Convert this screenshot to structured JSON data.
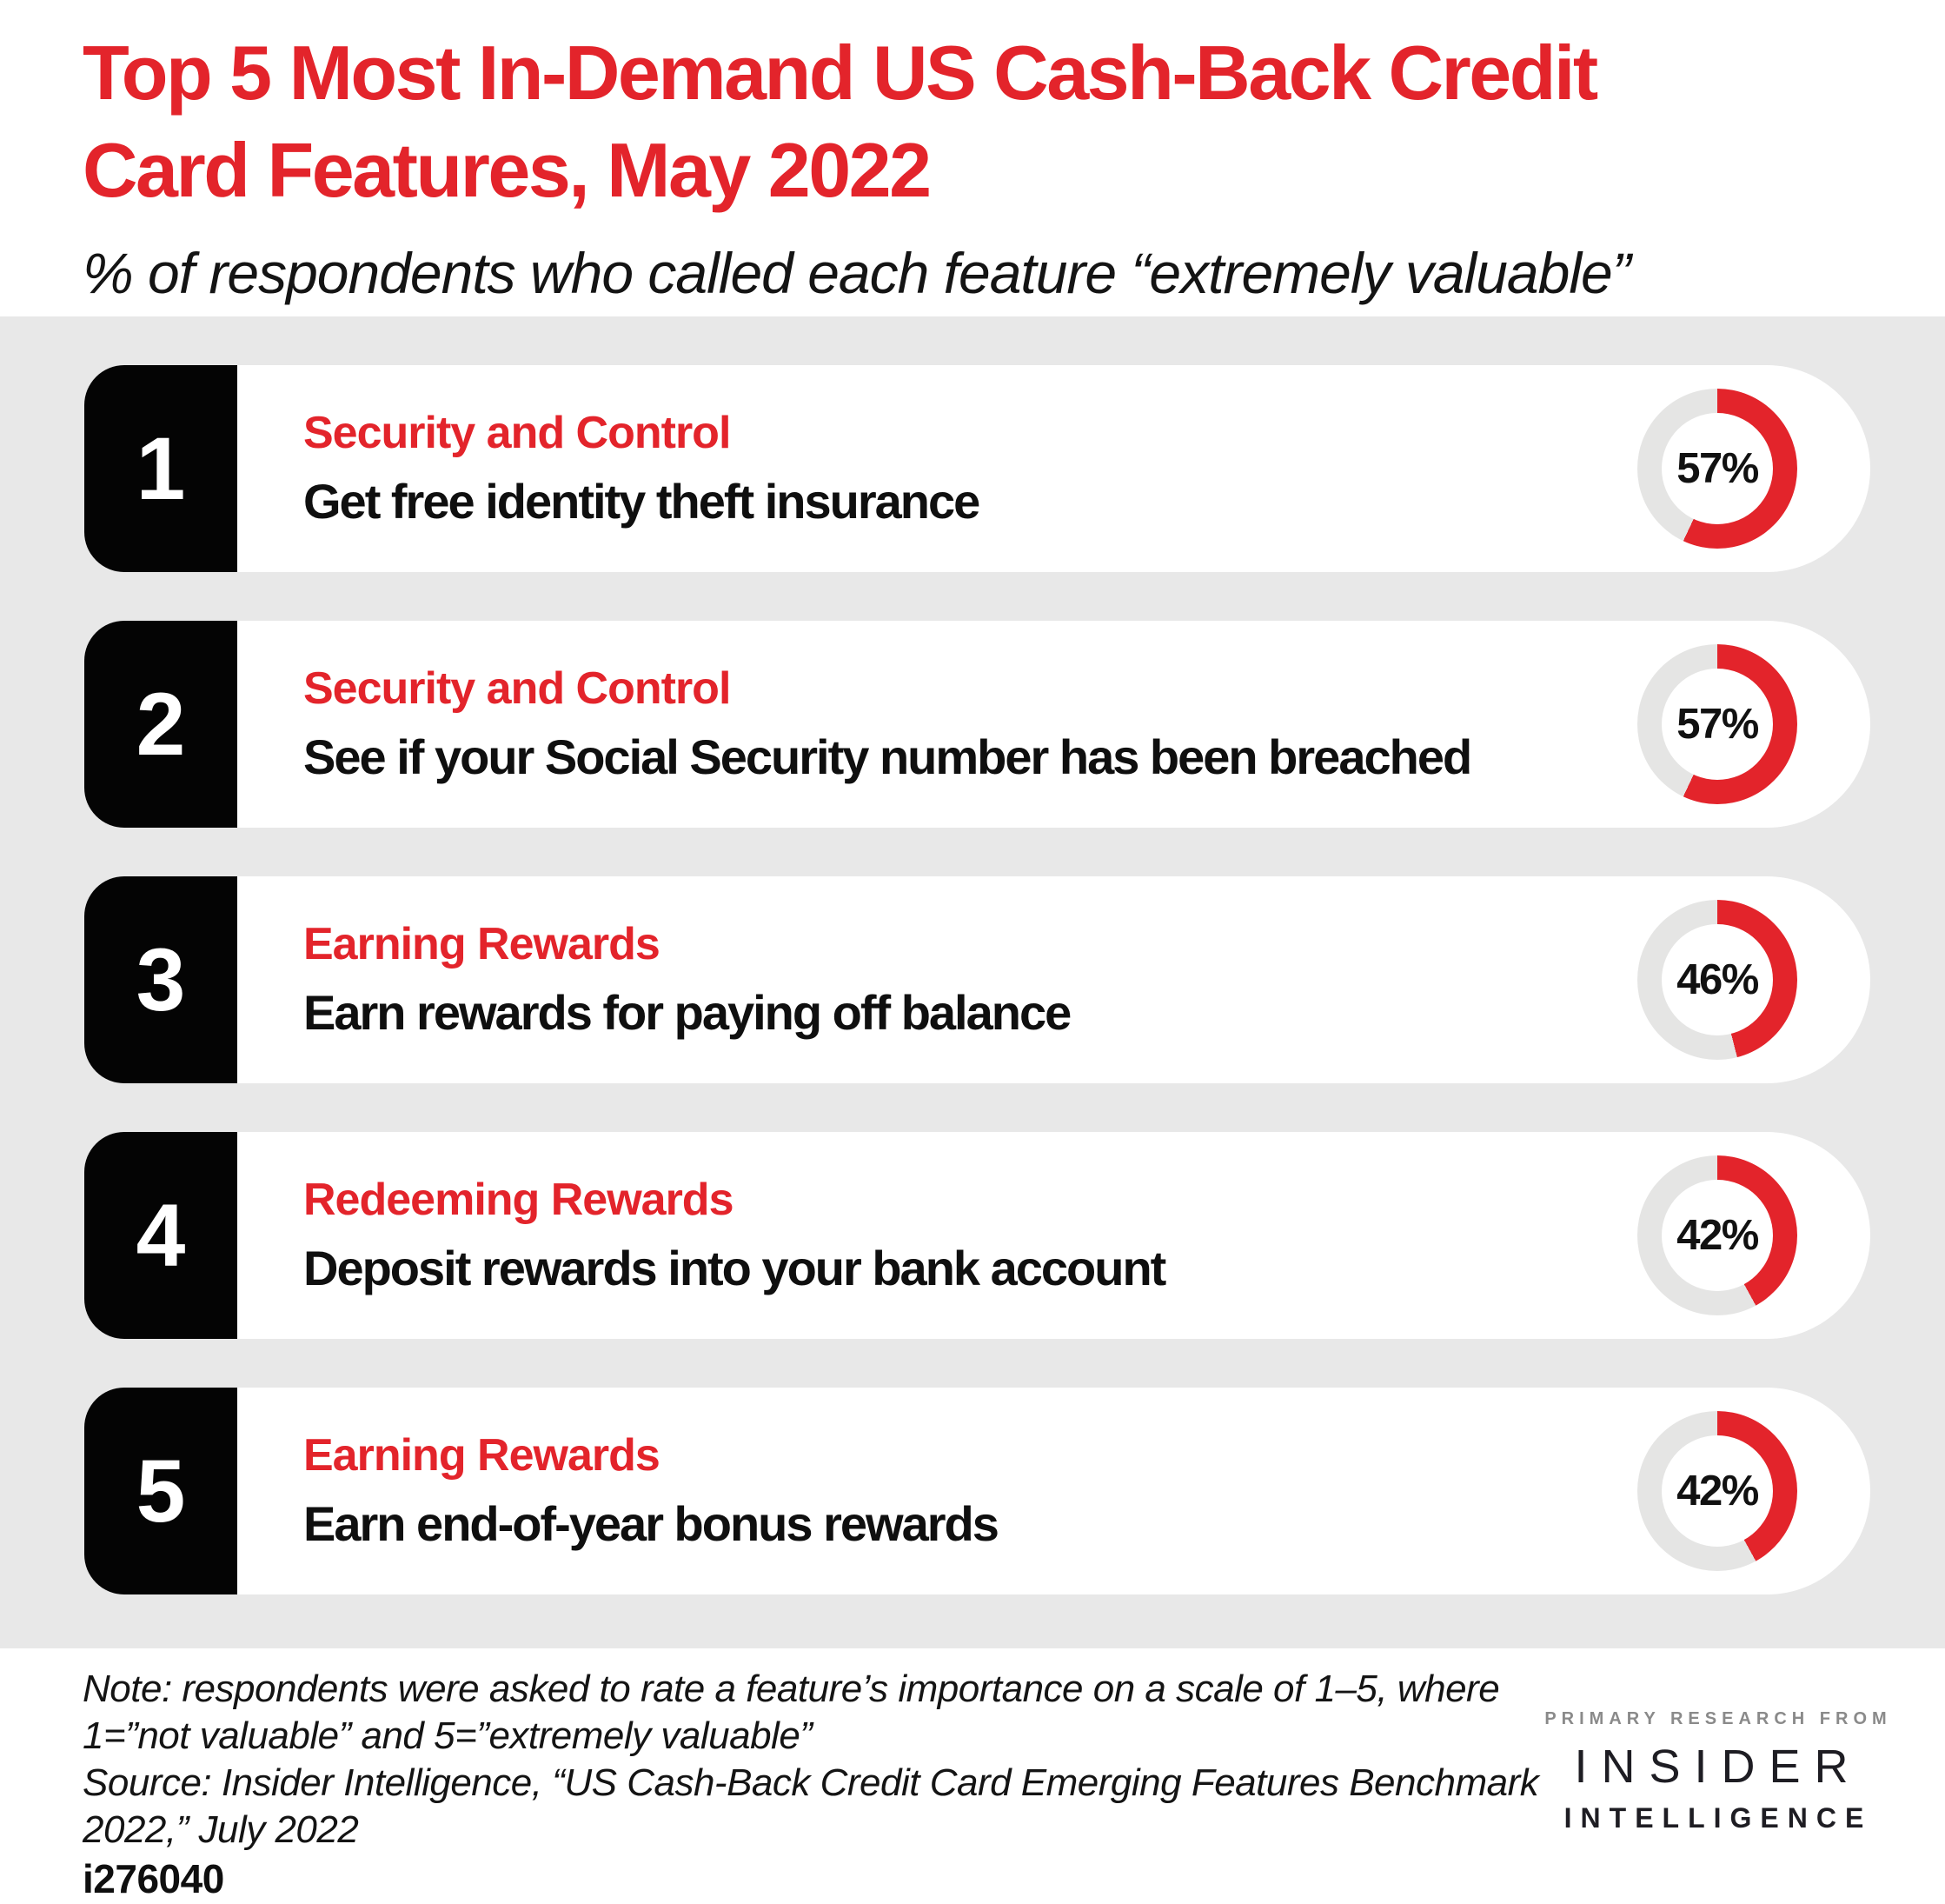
{
  "header": {
    "title_lines": [
      "Top 5 Most In-Demand US Cash-Back Credit",
      "Card Features, May 2022"
    ],
    "subtitle": "% of respondents who called each feature “extremely valuable”"
  },
  "chart_data": {
    "type": "donut",
    "title": "Top 5 Most In-Demand US Cash-Back Credit Card Features, May 2022",
    "subtitle": "% of respondents who called each feature “extremely valuable”",
    "unit": "%",
    "value_range": [
      0,
      100
    ],
    "items": [
      {
        "rank": "1",
        "category": "Security and Control",
        "label": "Get free identity theft insurance",
        "value": 57,
        "value_label": "57%"
      },
      {
        "rank": "2",
        "category": "Security and Control",
        "label": "See if your Social Security number has been breached",
        "value": 57,
        "value_label": "57%"
      },
      {
        "rank": "3",
        "category": "Earning Rewards",
        "label": "Earn rewards for paying off balance",
        "value": 46,
        "value_label": "46%"
      },
      {
        "rank": "4",
        "category": "Redeeming Rewards",
        "label": "Deposit rewards into your bank account",
        "value": 42,
        "value_label": "42%"
      },
      {
        "rank": "5",
        "category": "Earning Rewards",
        "label": "Earn end-of-year bonus rewards",
        "value": 42,
        "value_label": "42%"
      }
    ]
  },
  "footer": {
    "note_lines": [
      "Note: respondents were asked to rate a feature’s importance on a scale of 1–5, where",
      "1=”not valuable” and 5=”extremely valuable”"
    ],
    "source_lines": [
      "Source: Insider Intelligence, “US Cash-Back Credit Card Emerging Features Benchmark",
      "2022,” July 2022"
    ],
    "chart_id": "i276040",
    "logo_kicker": "PRIMARY RESEARCH FROM",
    "logo_line1": "INSIDER",
    "logo_line2": "INTELLIGENCE"
  },
  "colors": {
    "red": "#e3242b",
    "band_gray": "#e8e8e8",
    "donut_track": "#e5e5e4",
    "badge_black": "#040404",
    "logo_gray": "#8a8a8a",
    "logo_dark": "#1e1d23"
  }
}
